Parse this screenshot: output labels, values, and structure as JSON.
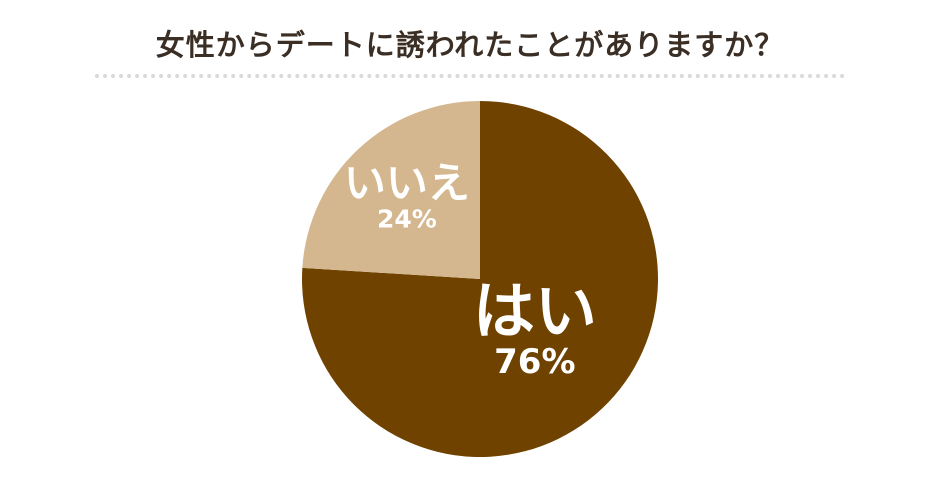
{
  "title": "女性からデートに誘われたことがありますか？",
  "chart_data": {
    "type": "pie",
    "title": "女性からデートに誘われたことがありますか？",
    "slices": [
      {
        "label": "はい",
        "value": 76,
        "value_label": "76%",
        "color": "#6f4200"
      },
      {
        "label": "いいえ",
        "value": 24,
        "value_label": "24%",
        "color": "#d4b68f"
      }
    ],
    "start_angle_deg": 0,
    "direction": "clockwise"
  }
}
